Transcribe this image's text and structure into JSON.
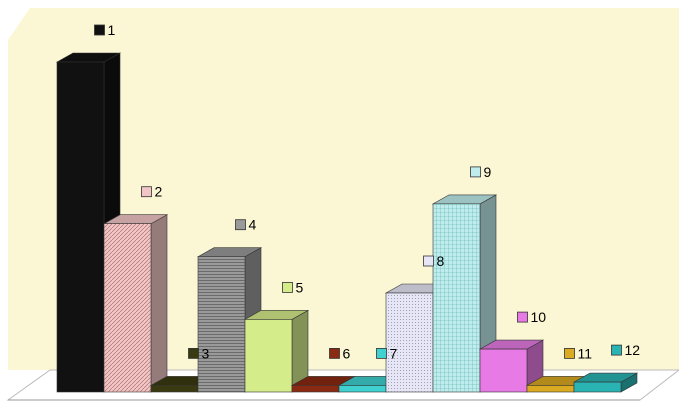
{
  "chart_data": {
    "type": "bar",
    "title": "",
    "xlabel": "",
    "ylabel": "",
    "ylim": [
      0,
      100
    ],
    "grid": false,
    "categories": [
      "1",
      "2",
      "3",
      "4",
      "5",
      "6",
      "7",
      "8",
      "9",
      "10",
      "11",
      "12"
    ],
    "values": [
      100,
      51,
      2,
      41,
      22,
      2,
      2,
      30,
      57,
      13,
      2,
      3
    ],
    "colors": [
      "#111111",
      "#f2c6c6",
      "#3a3a12",
      "#9a9a9a",
      "#d4ec8a",
      "#8a2a12",
      "#3fd0d0",
      "#e6e6f6",
      "#bfecec",
      "#e77ae4",
      "#d9aa22",
      "#2ab3b3"
    ],
    "background": "#fbf7d4",
    "floor": "#ffffff"
  }
}
